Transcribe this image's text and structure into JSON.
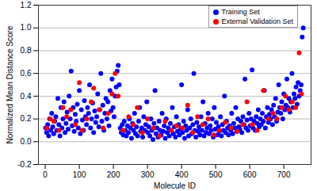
{
  "chart_data": {
    "type": "scatter",
    "x_label": "Molecule ID",
    "y_label": "Normalized Mean Distance Score",
    "xlim": [
      -20,
      780
    ],
    "xticks": [
      0,
      100,
      200,
      300,
      400,
      500,
      600,
      700
    ],
    "ylim": [
      -0.2,
      1.2
    ],
    "yticks": [
      {
        "value": -0.2,
        "label": "-0.2"
      },
      {
        "value": 0,
        "label": "0.0"
      },
      {
        "value": 0.2,
        "label": "0.2"
      },
      {
        "value": 0.4,
        "label": "0.4"
      },
      {
        "value": 0.6,
        "label": "0.6"
      },
      {
        "value": 0.8,
        "label": "0.8"
      },
      {
        "value": 1,
        "label": "1.0"
      },
      {
        "value": 1.2,
        "label": "1.2"
      }
    ],
    "grid": true,
    "legend": "top-right",
    "series": [
      {
        "name": "Training Set",
        "color": "#0000ff",
        "marker": "circle",
        "x": [
          1,
          4,
          7,
          10,
          13,
          16,
          19,
          22,
          25,
          28,
          31,
          34,
          37,
          40,
          43,
          46,
          49,
          52,
          55,
          58,
          61,
          64,
          67,
          70,
          73,
          76,
          79,
          82,
          85,
          88,
          91,
          94,
          97,
          100,
          103,
          106,
          109,
          112,
          115,
          118,
          121,
          124,
          127,
          130,
          133,
          136,
          139,
          142,
          145,
          148,
          151,
          154,
          157,
          160,
          163,
          166,
          169,
          172,
          175,
          178,
          181,
          184,
          187,
          190,
          193,
          196,
          199,
          202,
          205,
          208,
          211,
          214,
          217,
          220,
          223,
          226,
          229,
          232,
          235,
          238,
          241,
          244,
          247,
          250,
          253,
          256,
          259,
          262,
          265,
          268,
          271,
          274,
          277,
          280,
          283,
          286,
          289,
          292,
          295,
          298,
          301,
          304,
          307,
          310,
          313,
          316,
          319,
          322,
          325,
          328,
          331,
          334,
          337,
          340,
          343,
          346,
          349,
          352,
          355,
          358,
          361,
          364,
          367,
          370,
          373,
          376,
          379,
          382,
          385,
          388,
          391,
          394,
          397,
          400,
          403,
          406,
          409,
          412,
          415,
          418,
          421,
          424,
          427,
          430,
          433,
          436,
          439,
          442,
          445,
          448,
          451,
          454,
          457,
          460,
          463,
          466,
          469,
          472,
          475,
          478,
          481,
          484,
          487,
          490,
          493,
          496,
          499,
          502,
          505,
          508,
          511,
          514,
          517,
          520,
          523,
          526,
          529,
          532,
          535,
          538,
          541,
          544,
          547,
          550,
          553,
          556,
          559,
          562,
          565,
          568,
          571,
          574,
          577,
          580,
          583,
          586,
          589,
          592,
          595,
          598,
          601,
          604,
          607,
          610,
          613,
          616,
          619,
          622,
          625,
          628,
          631,
          634,
          637,
          640,
          643,
          646,
          649,
          652,
          655,
          658,
          661,
          664,
          667,
          670,
          673,
          676,
          679,
          682,
          685,
          688,
          691,
          694,
          697,
          700,
          703,
          706,
          709,
          712,
          715,
          718,
          721,
          724,
          727,
          730,
          733,
          736,
          739,
          742,
          745,
          748,
          751,
          754,
          757
        ],
        "values": [
          0.12,
          0.08,
          0.15,
          0.05,
          0.2,
          0.1,
          0.25,
          0.13,
          0.07,
          0.18,
          0.22,
          0.1,
          0.38,
          0.15,
          0.05,
          0.3,
          0.12,
          0.2,
          0.35,
          0.08,
          0.16,
          0.26,
          0.11,
          0.4,
          0.2,
          0.62,
          0.14,
          0.3,
          0.09,
          0.24,
          0.18,
          0.33,
          0.12,
          0.45,
          0.07,
          0.28,
          0.19,
          0.1,
          0.36,
          0.22,
          0.15,
          0.3,
          0.25,
          0.5,
          0.12,
          0.2,
          0.34,
          0.08,
          0.27,
          0.17,
          0.22,
          0.42,
          0.13,
          0.28,
          0.6,
          0.18,
          0.32,
          0.1,
          0.25,
          0.38,
          0.2,
          0.35,
          0.14,
          0.45,
          0.27,
          0.55,
          0.3,
          0.22,
          0.4,
          0.48,
          0.62,
          0.67,
          0.5,
          0.12,
          0.08,
          0.15,
          0.06,
          0.18,
          0.1,
          0.05,
          0.14,
          0.08,
          0.2,
          0.12,
          0.03,
          0.16,
          0.1,
          0.25,
          0.07,
          0.13,
          0.05,
          0.18,
          0.3,
          0.09,
          0.12,
          0.04,
          0.22,
          0.1,
          0.15,
          0.35,
          0.08,
          0.13,
          0.05,
          0.2,
          0.1,
          0.02,
          0.16,
          0.45,
          0.07,
          0.12,
          0.04,
          0.18,
          0.1,
          0.06,
          0.25,
          0.09,
          0.14,
          0.03,
          0.2,
          0.08,
          0.12,
          0.05,
          0.16,
          0.1,
          0.3,
          0.07,
          0.13,
          0.04,
          0.22,
          0.09,
          0.15,
          0.06,
          0.11,
          0.5,
          0.08,
          0.18,
          0.03,
          0.14,
          0.1,
          0.28,
          0.05,
          0.12,
          0.2,
          0.07,
          0.15,
          0.6,
          0.1,
          0.04,
          0.17,
          0.09,
          0.13,
          0.06,
          0.22,
          0.1,
          0.35,
          0.05,
          0.16,
          0.08,
          0.12,
          0.25,
          0.07,
          0.14,
          0.1,
          0.2,
          0.04,
          0.3,
          0.11,
          0.17,
          0.06,
          0.13,
          0.09,
          0.22,
          0.05,
          0.15,
          0.1,
          0.4,
          0.08,
          0.18,
          0.12,
          0.06,
          0.14,
          0.1,
          0.25,
          0.07,
          0.16,
          0.12,
          0.3,
          0.09,
          0.2,
          0.13,
          0.11,
          0.18,
          0.08,
          0.22,
          0.15,
          0.55,
          0.12,
          0.19,
          0.1,
          0.25,
          0.14,
          0.2,
          0.63,
          0.12,
          0.18,
          0.1,
          0.22,
          0.16,
          0.28,
          0.13,
          0.2,
          0.15,
          0.25,
          0.18,
          0.45,
          0.12,
          0.22,
          0.3,
          0.17,
          0.24,
          0.2,
          0.28,
          0.15,
          0.32,
          0.22,
          0.38,
          0.18,
          0.26,
          0.5,
          0.3,
          0.25,
          0.35,
          0.2,
          0.42,
          0.28,
          0.32,
          0.55,
          0.3,
          0.38,
          0.26,
          0.35,
          0.6,
          0.3,
          0.42,
          0.38,
          0.48,
          0.33,
          0.52,
          0.4,
          0.45,
          0.5,
          0.92,
          1.0
        ]
      },
      {
        "name": "External Validation Set",
        "color": "#ff0000",
        "marker": "circle",
        "x": [
          5,
          15,
          25,
          40,
          52,
          63,
          75,
          88,
          100,
          108,
          122,
          135,
          142,
          158,
          170,
          185,
          196,
          205,
          214,
          228,
          245,
          258,
          270,
          285,
          300,
          318,
          335,
          352,
          370,
          385,
          402,
          418,
          433,
          447,
          462,
          478,
          495,
          510,
          528,
          545,
          563,
          580,
          592,
          608,
          622,
          640,
          655,
          668,
          680,
          695,
          705,
          715,
          725,
          735,
          745,
          752
        ],
        "values": [
          0.12,
          0.2,
          0.18,
          0.1,
          0.3,
          0.22,
          0.28,
          0.15,
          0.52,
          0.1,
          0.2,
          0.35,
          0.47,
          0.28,
          0.12,
          0.25,
          0.42,
          0.6,
          0.4,
          0.1,
          0.22,
          0.15,
          0.3,
          0.08,
          0.2,
          0.12,
          0.05,
          0.18,
          0.1,
          0.14,
          0.12,
          0.32,
          0.08,
          0.22,
          0.15,
          0.2,
          0.06,
          0.1,
          0.17,
          0.12,
          0.09,
          0.15,
          0.35,
          0.15,
          0.1,
          0.45,
          0.2,
          0.25,
          0.2,
          0.3,
          0.4,
          0.28,
          0.35,
          0.3,
          0.78,
          0.42
        ]
      }
    ]
  }
}
